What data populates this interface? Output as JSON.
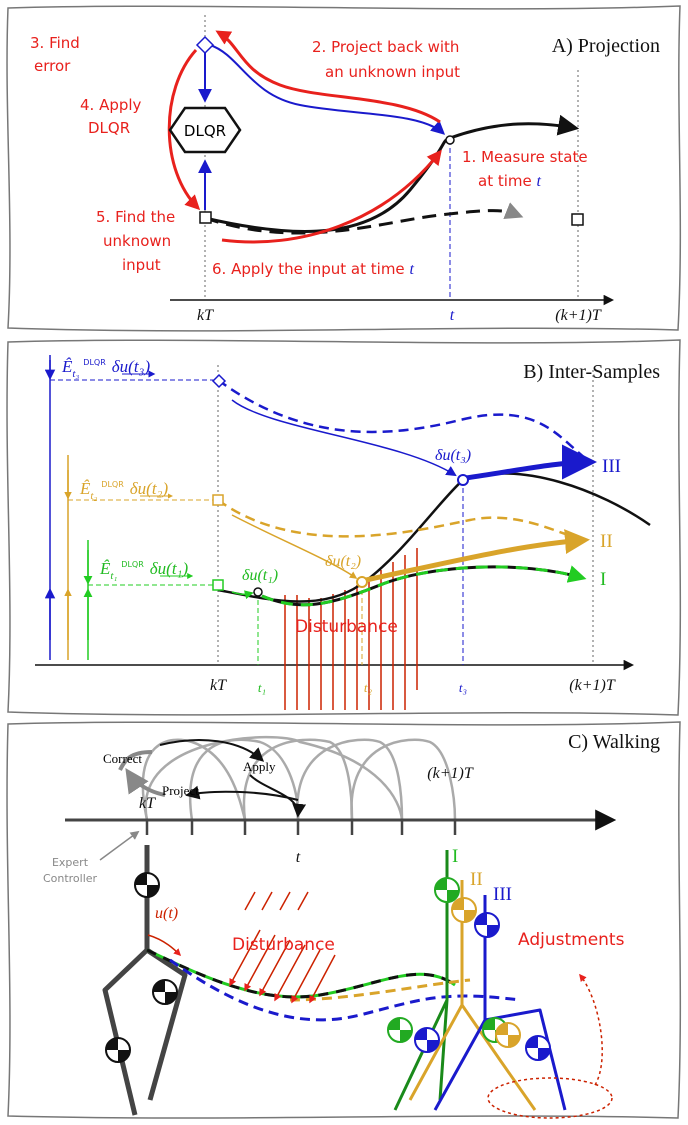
{
  "panel_a": {
    "title": "A) Projection",
    "dlqr": "DLQR",
    "steps": [
      {
        "lines": [
          "1. Measure state",
          "at time"
        ],
        "var": "t"
      },
      {
        "lines": [
          "2. Project back with",
          "an unknown input"
        ]
      },
      {
        "lines": [
          "3. Find",
          "error"
        ]
      },
      {
        "lines": [
          "4. Apply",
          "DLQR"
        ]
      },
      {
        "lines": [
          "5. Find the",
          "unknown",
          "input"
        ]
      },
      {
        "lines": [
          "6. Apply the input at time"
        ],
        "var": "t"
      }
    ],
    "axis": {
      "start": "kT",
      "mid": "t",
      "end": "(k+1)T"
    }
  },
  "panel_b": {
    "title": "B) Inter-Samples",
    "equations": [
      {
        "lhs": "Ê",
        "sub": "t₃",
        "arrow": "DLQR",
        "rhs": "δu(t₃)"
      },
      {
        "lhs": "Ê",
        "sub": "t₂",
        "arrow": "DLQR",
        "rhs": "δu(t₂)"
      },
      {
        "lhs": "Ê",
        "sub": "t₁",
        "arrow": "DLQR",
        "rhs": "δu(t₁)"
      }
    ],
    "point_labels": [
      "δu(t₁)",
      "δu(t₂)",
      "δu(t₃)"
    ],
    "disturbance": "Disturbance",
    "trajectories": [
      "I",
      "II",
      "III"
    ],
    "axis": {
      "start": "kT",
      "ticks": [
        "t₁",
        "t₂",
        "t₃"
      ],
      "end": "(k+1)T"
    }
  },
  "panel_c": {
    "title": "C) Walking",
    "correct": "Correct",
    "project": "Project",
    "apply": "Apply",
    "axis": {
      "start": "kT",
      "end": "(k+1)T",
      "mid": "t"
    },
    "expert_controller": [
      "Expert",
      "Controller"
    ],
    "control": "u(t)",
    "disturbance": "Disturbance",
    "trajectories": [
      "I",
      "II",
      "III"
    ],
    "adjustments": "Adjustments"
  }
}
